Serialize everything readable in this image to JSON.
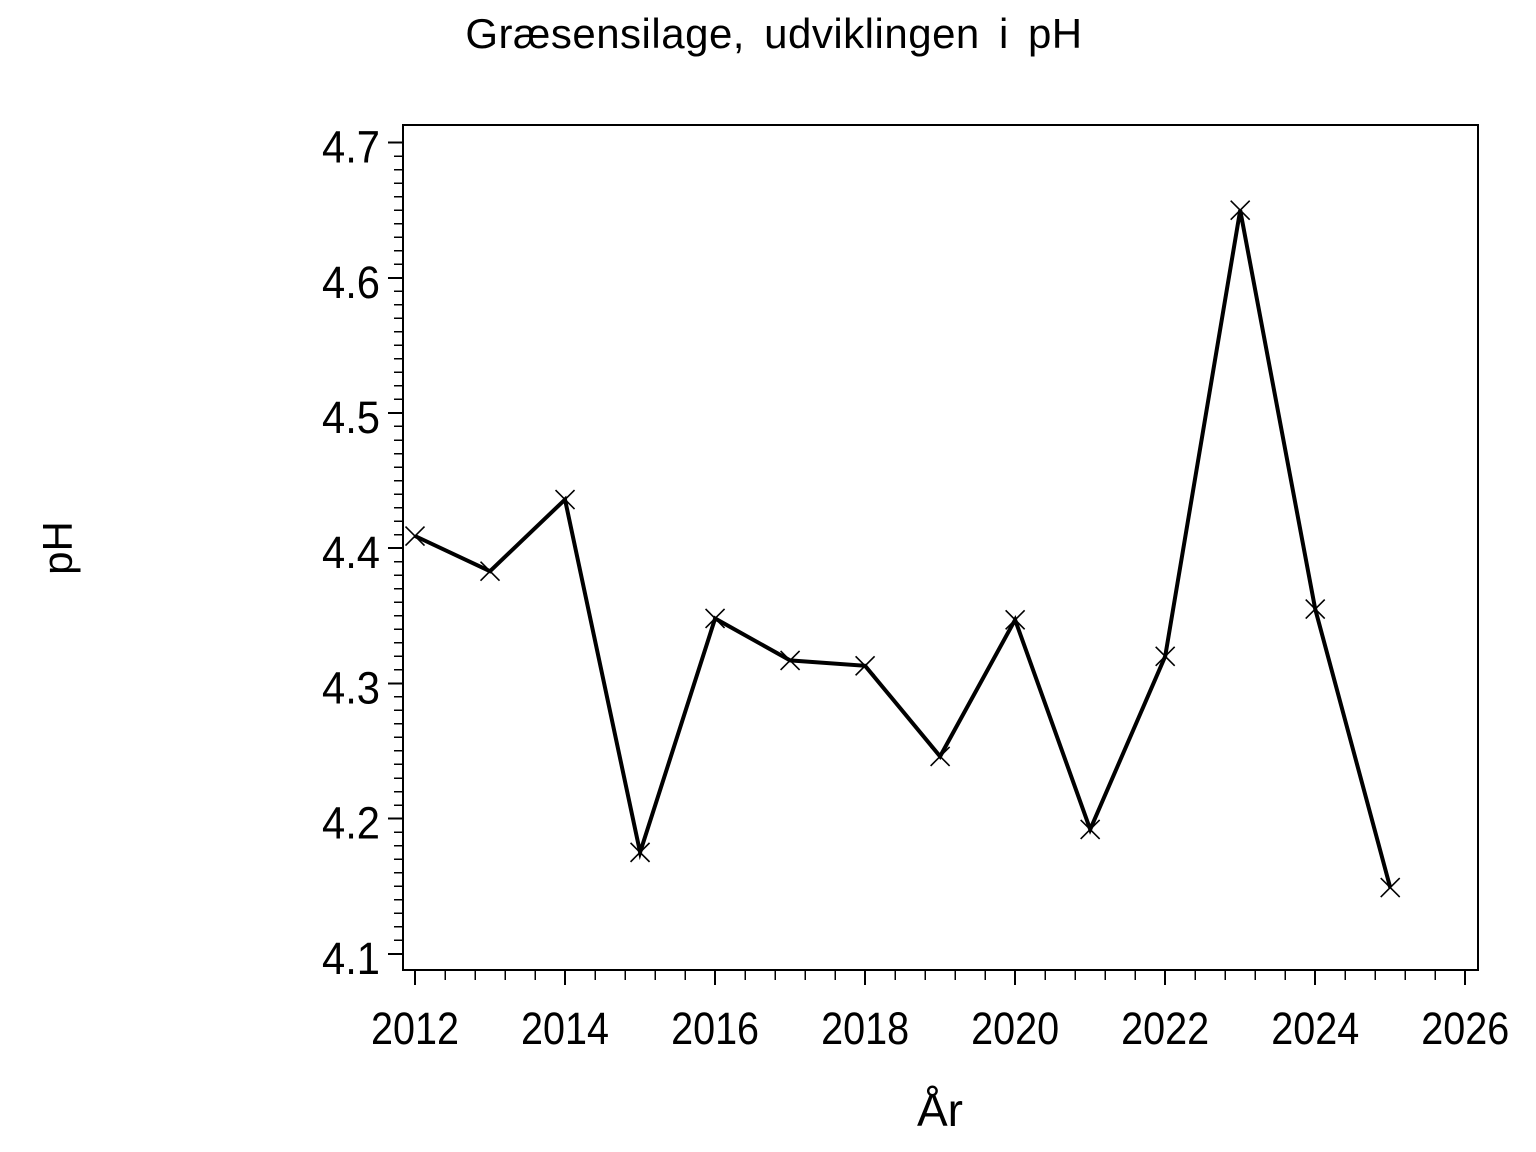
{
  "chart_data": {
    "type": "line",
    "title": "Græsensilage, udviklingen i pH",
    "xlabel": "År",
    "ylabel": "pH",
    "x": [
      2012,
      2013,
      2014,
      2015,
      2016,
      2017,
      2018,
      2019,
      2020,
      2021,
      2022,
      2023,
      2024,
      2025
    ],
    "y": [
      4.409,
      4.383,
      4.436,
      4.175,
      4.348,
      4.317,
      4.313,
      4.246,
      4.347,
      4.192,
      4.32,
      4.65,
      4.355,
      4.149
    ],
    "series_name": "pH",
    "xlim": [
      2011.84,
      2026.17
    ],
    "ylim": [
      4.088,
      4.713
    ],
    "xticks": [
      2012,
      2014,
      2016,
      2018,
      2020,
      2022,
      2024,
      2026
    ],
    "yticks": [
      4.1,
      4.2,
      4.3,
      4.4,
      4.5,
      4.6,
      4.7
    ],
    "x_minor_tick_step": 0.4,
    "y_minor_tick_step": 0.01,
    "x_minor_range": [
      2012,
      2026
    ],
    "y_minor_range": [
      4.1,
      4.7
    ],
    "marker": "x",
    "line_color": "#000000",
    "text_color": "#000000",
    "background": "#ffffff",
    "grid": false,
    "legend_position": "none"
  }
}
